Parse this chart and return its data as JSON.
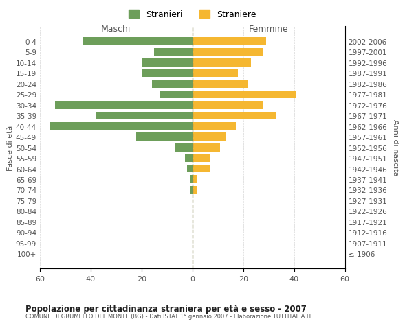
{
  "age_groups": [
    "0-4",
    "5-9",
    "10-14",
    "15-19",
    "20-24",
    "25-29",
    "30-34",
    "35-39",
    "40-44",
    "45-49",
    "50-54",
    "55-59",
    "60-64",
    "65-69",
    "70-74",
    "75-79",
    "80-84",
    "85-89",
    "90-94",
    "95-99",
    "100+"
  ],
  "birth_years": [
    "2002-2006",
    "1997-2001",
    "1992-1996",
    "1987-1991",
    "1982-1986",
    "1977-1981",
    "1972-1976",
    "1967-1971",
    "1962-1966",
    "1957-1961",
    "1952-1956",
    "1947-1951",
    "1942-1946",
    "1937-1941",
    "1932-1936",
    "1927-1931",
    "1922-1926",
    "1917-1921",
    "1912-1916",
    "1907-1911",
    "≤ 1906"
  ],
  "males": [
    43,
    15,
    20,
    20,
    16,
    13,
    54,
    38,
    56,
    22,
    7,
    3,
    2,
    1,
    1,
    0,
    0,
    0,
    0,
    0,
    0
  ],
  "females": [
    29,
    28,
    23,
    18,
    22,
    41,
    28,
    33,
    17,
    13,
    11,
    7,
    7,
    2,
    2,
    0,
    0,
    0,
    0,
    0,
    0
  ],
  "male_color": "#6d9e5a",
  "female_color": "#f5b731",
  "background_color": "#ffffff",
  "grid_color": "#cccccc",
  "center_line_color": "#888855",
  "title": "Popolazione per cittadinanza straniera per età e sesso - 2007",
  "subtitle": "COMUNE DI GRUMELLO DEL MONTE (BG) - Dati ISTAT 1° gennaio 2007 - Elaborazione TUTTITALIA.IT",
  "xlabel_left": "Maschi",
  "xlabel_right": "Femmine",
  "ylabel_left": "Fasce di età",
  "ylabel_right": "Anni di nascita",
  "legend_male": "Stranieri",
  "legend_female": "Straniere",
  "xlim": 60
}
